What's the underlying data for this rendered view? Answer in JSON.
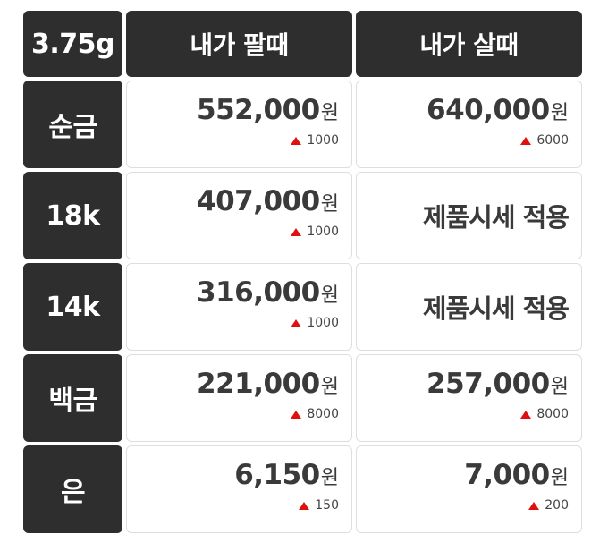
{
  "header": {
    "weight": "3.75g",
    "sell_label": "내가 팔때",
    "buy_label": "내가 살때"
  },
  "unit": "원",
  "colors": {
    "label_bg": "#2e2e2e",
    "up_arrow": "#e01010"
  },
  "rows": [
    {
      "label": "순금",
      "sell": {
        "price": "552,000",
        "change": "1000"
      },
      "buy": {
        "price": "640,000",
        "change": "6000"
      }
    },
    {
      "label": "18k",
      "sell": {
        "price": "407,000",
        "change": "1000"
      },
      "buy": {
        "note": "제품시세 적용"
      }
    },
    {
      "label": "14k",
      "sell": {
        "price": "316,000",
        "change": "1000"
      },
      "buy": {
        "note": "제품시세 적용"
      }
    },
    {
      "label": "백금",
      "sell": {
        "price": "221,000",
        "change": "8000"
      },
      "buy": {
        "price": "257,000",
        "change": "8000"
      }
    },
    {
      "label": "은",
      "sell": {
        "price": "6,150",
        "change": "150"
      },
      "buy": {
        "price": "7,000",
        "change": "200"
      }
    }
  ]
}
